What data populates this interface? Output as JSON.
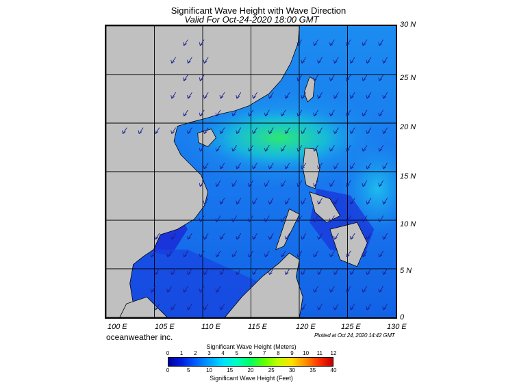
{
  "title": "Significant Wave Height with Wave Direction",
  "subtitle": "Valid For Oct-24-2020 18:00 GMT",
  "credit": "oceanweather inc.",
  "plotted": "Plotted at Oct 24, 2020 14:42 GMT",
  "map": {
    "lon_range": [
      100,
      130
    ],
    "lat_range": [
      0,
      30
    ],
    "lon_labels": [
      "100 E",
      "105 E",
      "110 E",
      "115 E",
      "120 E",
      "125 E",
      "130 E"
    ],
    "lat_labels": [
      "30 N",
      "25 N",
      "20 N",
      "15 N",
      "10 N",
      "5 N",
      "0"
    ],
    "land_color": "#c0c0c0",
    "grid_color": "#000000",
    "arrow_color": "#1b1f8f"
  },
  "colorbar": {
    "title_top": "Significant Wave Height (Meters)",
    "title_bottom": "Significant Wave Height (Feet)",
    "meters": [
      "0",
      "1",
      "2",
      "3",
      "4",
      "5",
      "6",
      "7",
      "8",
      "9",
      "10",
      "11",
      "12"
    ],
    "feet": [
      "0",
      "5",
      "10",
      "15",
      "20",
      "25",
      "30",
      "35",
      "40"
    ],
    "colors": [
      "#0000a0",
      "#0020e0",
      "#0060ff",
      "#00a0ff",
      "#00e0ff",
      "#00ffc0",
      "#00ff60",
      "#60ff00",
      "#c0ff00",
      "#ffe000",
      "#ff9000",
      "#ff3000",
      "#c00000"
    ]
  }
}
